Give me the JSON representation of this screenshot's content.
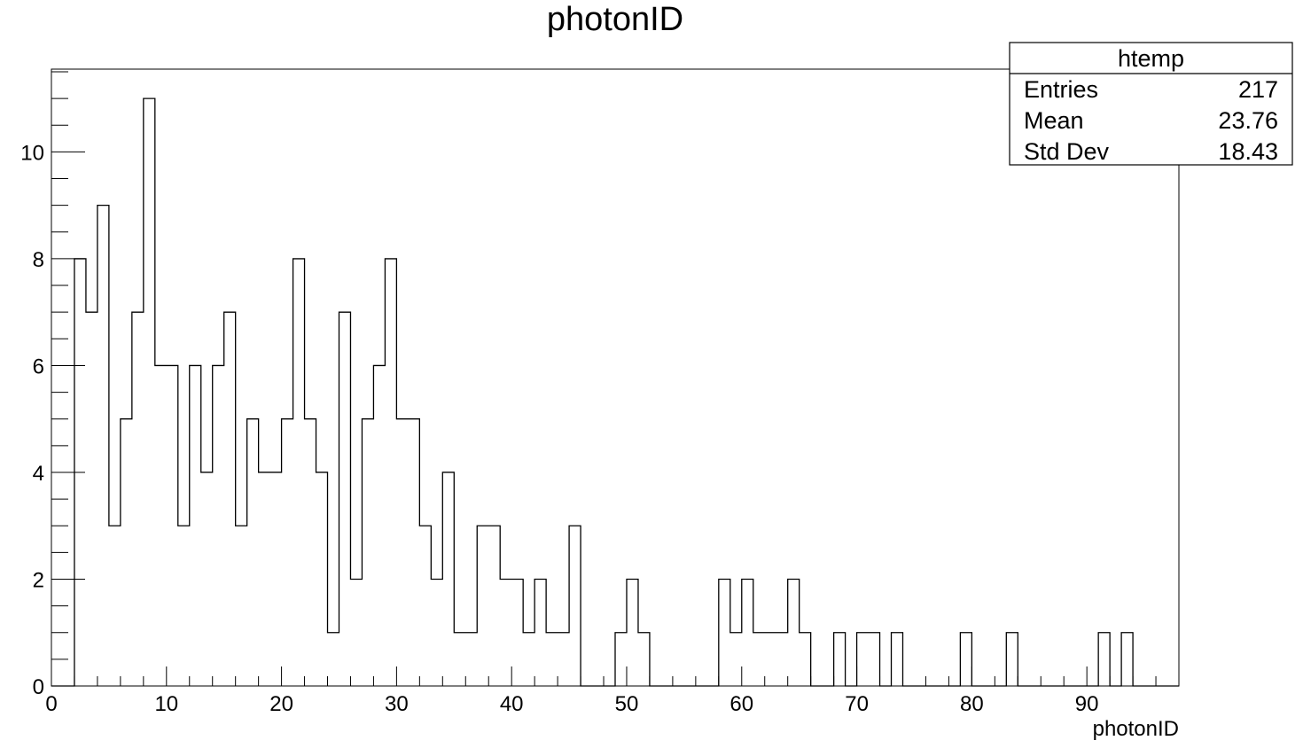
{
  "chart_data": {
    "type": "bar",
    "style": "histogram-step",
    "title": "photonID",
    "xlabel": "photonID",
    "ylabel": "",
    "xlim": [
      0,
      98
    ],
    "ylim": [
      0,
      11.55
    ],
    "xticks": [
      0,
      10,
      20,
      30,
      40,
      50,
      60,
      70,
      80,
      90
    ],
    "yticks": [
      0,
      2,
      4,
      6,
      8,
      10
    ],
    "bin_width": 1,
    "x_start": 0,
    "values": [
      0,
      0,
      8,
      7,
      9,
      3,
      5,
      7,
      11,
      6,
      6,
      3,
      6,
      4,
      6,
      7,
      3,
      5,
      4,
      4,
      5,
      8,
      5,
      4,
      1,
      7,
      2,
      5,
      6,
      8,
      5,
      5,
      3,
      2,
      4,
      1,
      1,
      3,
      3,
      2,
      2,
      1,
      2,
      1,
      1,
      3,
      0,
      0,
      0,
      1,
      2,
      1,
      0,
      0,
      0,
      0,
      0,
      0,
      2,
      1,
      2,
      1,
      1,
      1,
      2,
      1,
      0,
      0,
      1,
      0,
      1,
      1,
      0,
      1,
      0,
      0,
      0,
      0,
      0,
      1,
      0,
      0,
      0,
      1,
      0,
      0,
      0,
      0,
      0,
      0,
      0,
      1,
      0,
      1,
      0,
      0,
      0,
      0
    ],
    "line_color": "#000000",
    "grid": false,
    "stats_box": {
      "name": "htemp",
      "placement": "top-right",
      "rows": [
        {
          "label": "Entries",
          "value": "217"
        },
        {
          "label": "Mean",
          "value": "23.76"
        },
        {
          "label": "Std Dev",
          "value": "18.43"
        }
      ]
    }
  }
}
